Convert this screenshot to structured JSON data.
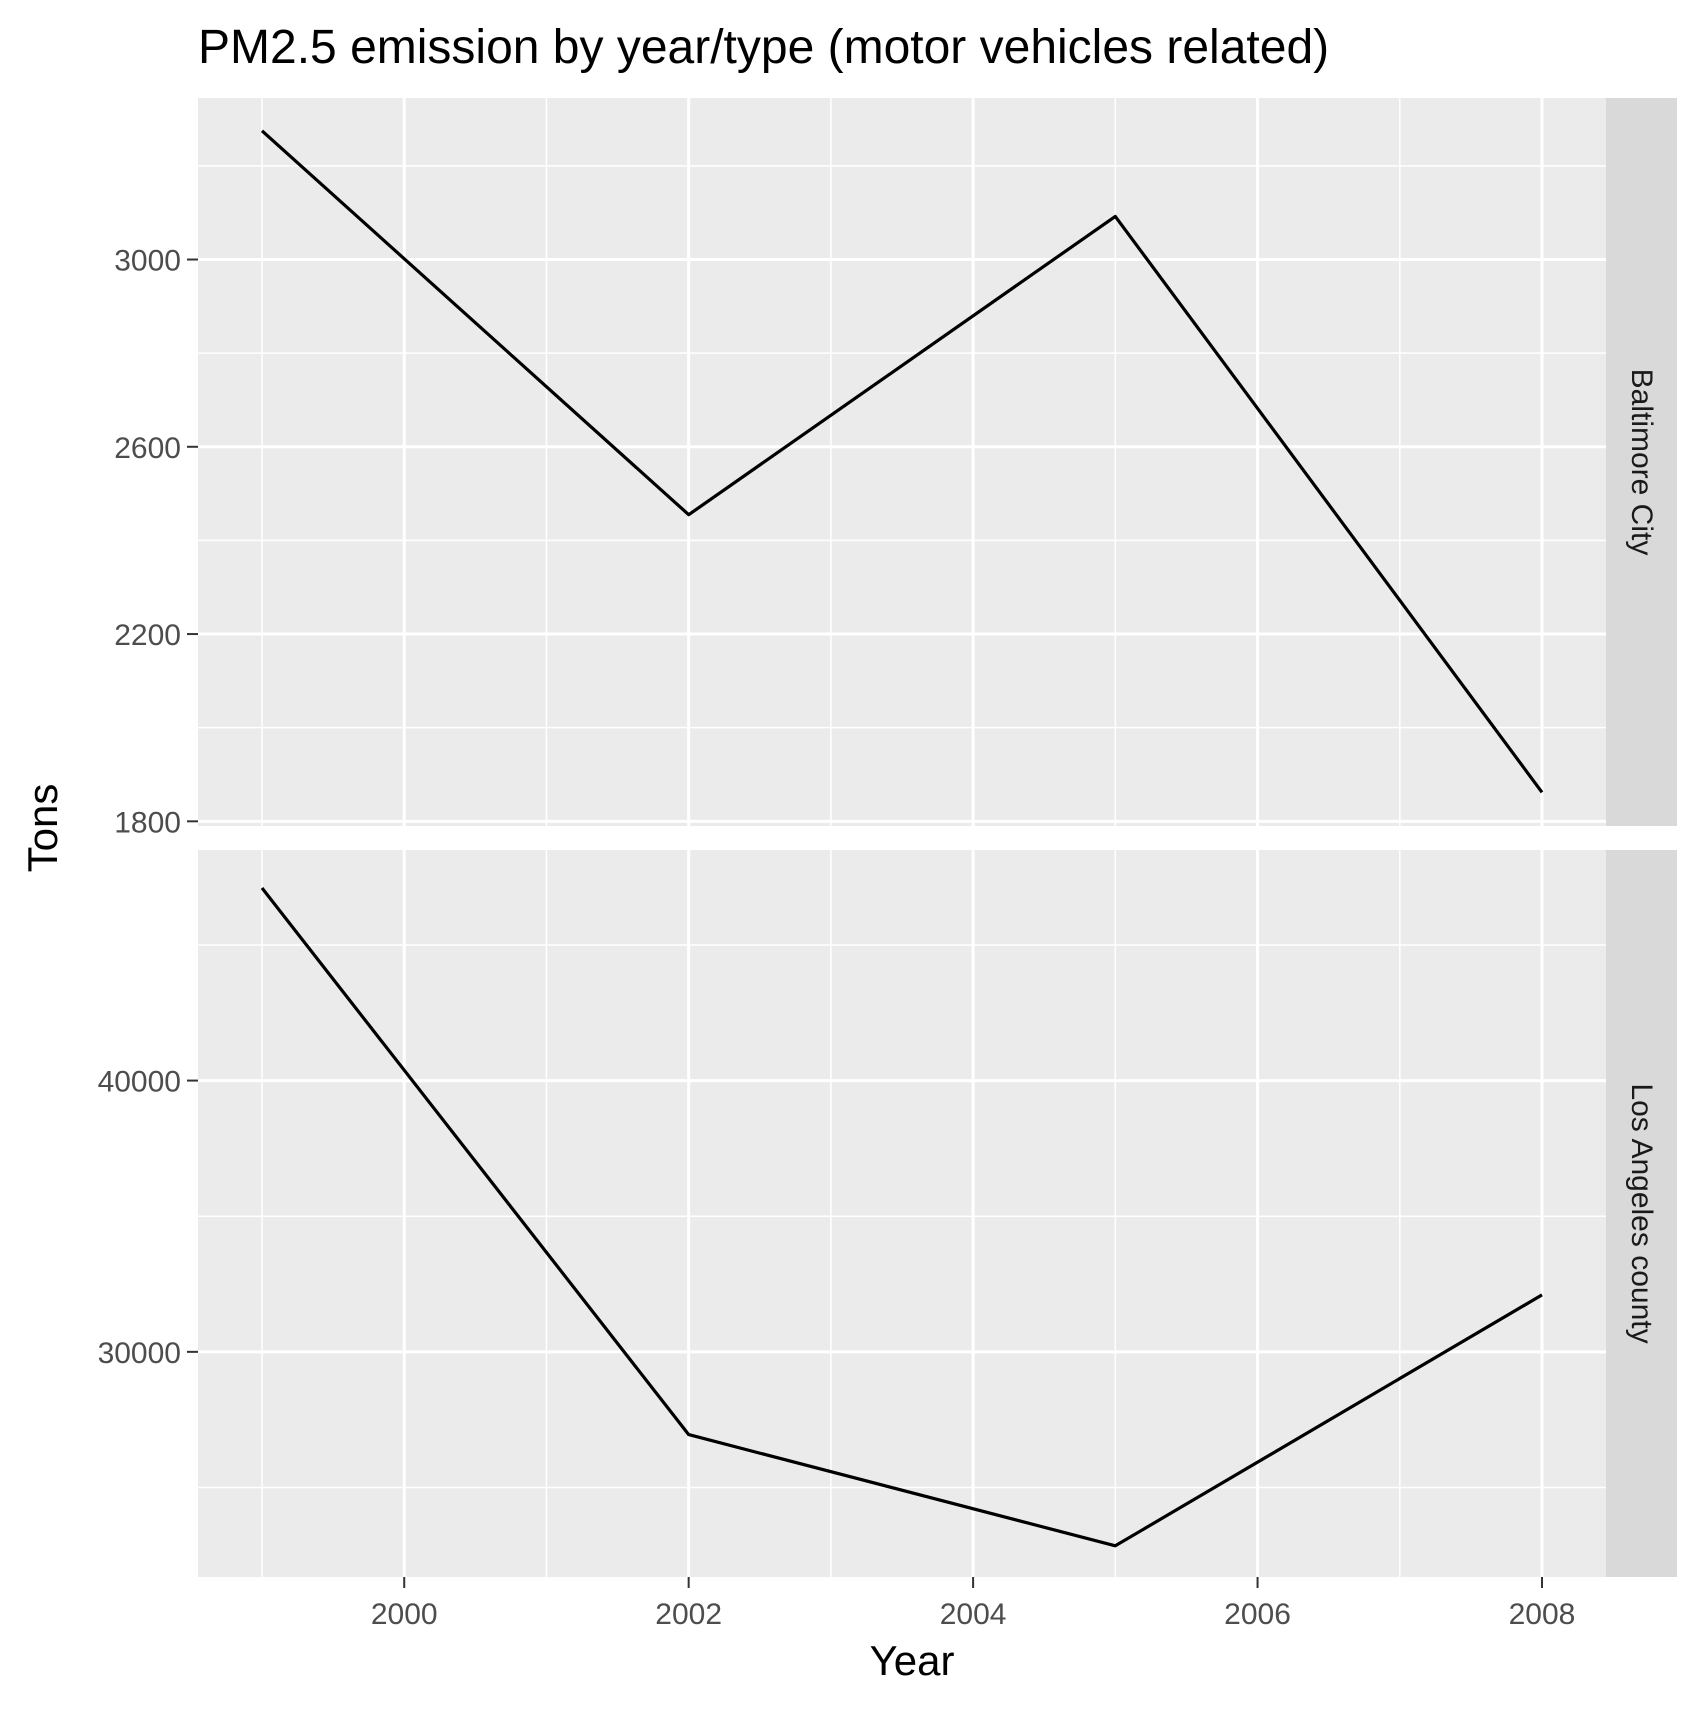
{
  "chart_data": {
    "type": "line",
    "title": "PM2.5 emission by year/type (motor vehicles related)",
    "xlabel": "Year",
    "ylabel": "Tons",
    "x_ticks": [
      2000,
      2002,
      2004,
      2006,
      2008
    ],
    "xlim": [
      1998.55,
      2008.45
    ],
    "facet_layout": "rows",
    "facet_strip_position": "right",
    "grid": true,
    "colors": {
      "panel_bg": "#ebebeb",
      "strip_bg": "#d9d9d9",
      "grid": "#ffffff",
      "line": "#000000",
      "tick_text": "#4d4d4d",
      "title_text": "#000000"
    },
    "facets": [
      {
        "label": "Baltimore City",
        "x": [
          1999,
          2002,
          2005,
          2008
        ],
        "y": [
          3275,
          2455,
          3092,
          1862
        ],
        "ylim": [
          1790,
          3345
        ],
        "y_ticks": [
          1800,
          2200,
          2600,
          3000
        ]
      },
      {
        "label": "Los Angeles county",
        "x": [
          1999,
          2002,
          2005,
          2008
        ],
        "y": [
          47100,
          26950,
          22850,
          32100
        ],
        "ylim": [
          21700,
          48500
        ],
        "y_ticks": [
          30000,
          40000
        ]
      }
    ]
  }
}
